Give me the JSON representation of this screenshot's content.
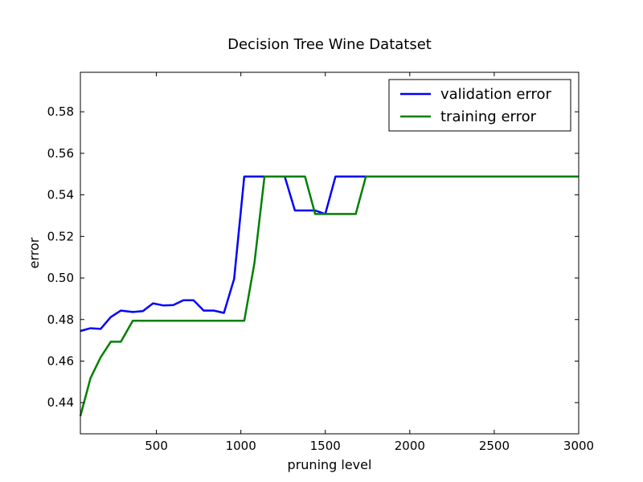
{
  "chart_data": {
    "type": "line",
    "title": "Decision Tree Wine Datatset",
    "xlabel": "pruning level",
    "ylabel": "error",
    "xlim": [
      50,
      3000
    ],
    "ylim": [
      0.425,
      0.599
    ],
    "xticks": [
      500,
      1000,
      1500,
      2000,
      2500,
      3000
    ],
    "yticks": [
      0.44,
      0.46,
      0.48,
      0.5,
      0.52,
      0.54,
      0.56,
      0.58
    ],
    "ytick_labels": [
      "0.44",
      "0.46",
      "0.48",
      "0.50",
      "0.52",
      "0.54",
      "0.56",
      "0.58"
    ],
    "grid": false,
    "legend_position": "top-right",
    "series": [
      {
        "name": "validation error",
        "color": "#0000ff",
        "x": [
          50,
          110,
          170,
          230,
          290,
          360,
          420,
          480,
          540,
          600,
          660,
          720,
          780,
          840,
          900,
          960,
          1020,
          1080,
          1140,
          1200,
          1260,
          1320,
          1380,
          1440,
          1500,
          1560,
          1620,
          1680,
          1740,
          3000
        ],
        "y": [
          0.4745,
          0.4758,
          0.4755,
          0.4812,
          0.4843,
          0.4836,
          0.4841,
          0.4878,
          0.4868,
          0.487,
          0.4893,
          0.4893,
          0.4843,
          0.4843,
          0.4832,
          0.4996,
          0.5488,
          0.5488,
          0.5488,
          0.5488,
          0.5488,
          0.5325,
          0.5325,
          0.5325,
          0.5308,
          0.5488,
          0.5488,
          0.5488,
          0.5488,
          0.5488
        ]
      },
      {
        "name": "training error",
        "color": "#008000",
        "x": [
          50,
          110,
          170,
          230,
          290,
          360,
          420,
          960,
          1020,
          1080,
          1140,
          1200,
          1260,
          1320,
          1380,
          1440,
          1500,
          1560,
          1620,
          1680,
          1740,
          3000
        ],
        "y": [
          0.4335,
          0.4518,
          0.4618,
          0.4693,
          0.4693,
          0.4794,
          0.4794,
          0.4794,
          0.4794,
          0.507,
          0.5488,
          0.5488,
          0.5488,
          0.5488,
          0.5488,
          0.5308,
          0.5308,
          0.5308,
          0.5308,
          0.5308,
          0.5488,
          0.5488
        ]
      }
    ]
  }
}
